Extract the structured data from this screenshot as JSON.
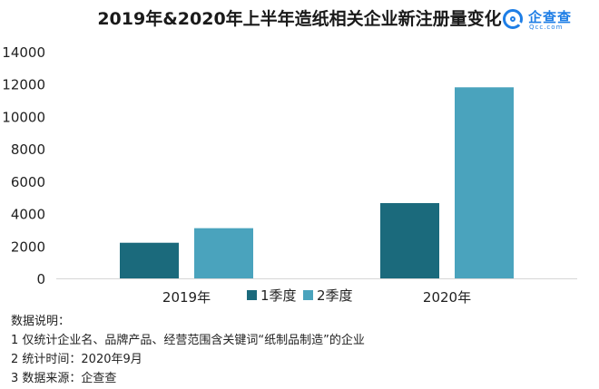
{
  "title": "2019年&2020年上半年造纸相关企业新注册量变化",
  "logo": {
    "name": "企查查",
    "sub": "Qcc.com"
  },
  "colors": {
    "q1": "#1b6a7c",
    "q2": "#4aa3bd"
  },
  "chart_data": {
    "type": "bar",
    "categories": [
      "2019年",
      "2020年"
    ],
    "series": [
      {
        "name": "1季度",
        "values": [
          2200,
          4650
        ]
      },
      {
        "name": "2季度",
        "values": [
          3100,
          11800
        ]
      }
    ],
    "ylim": [
      0,
      14000
    ],
    "yticks": [
      0,
      2000,
      4000,
      6000,
      8000,
      10000,
      12000,
      14000
    ],
    "grid": false,
    "legend": "bottom-center"
  },
  "notes": [
    "数据说明：",
    "1 仅统计企业名、品牌产品、经营范围含关键词“纸制品制造”的企业",
    "2 统计时间：2020年9月",
    "3 数据来源：企查查"
  ]
}
